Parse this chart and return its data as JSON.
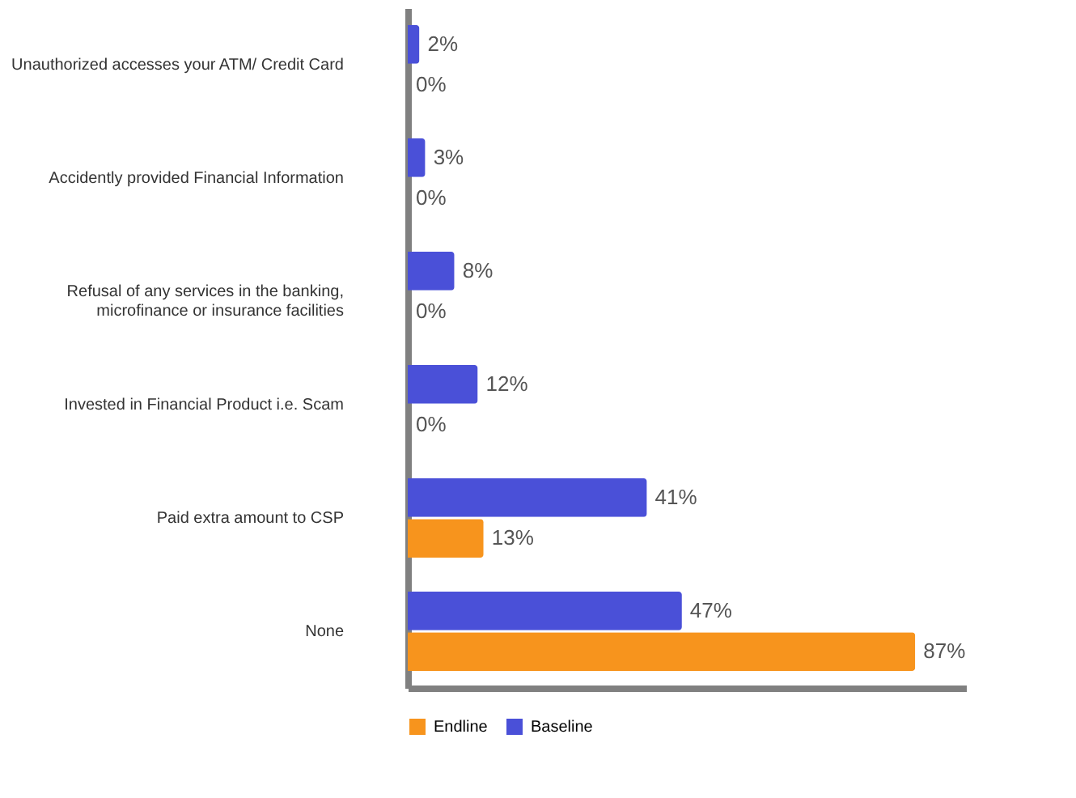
{
  "chart_data": {
    "type": "bar",
    "orientation": "horizontal",
    "categories": [
      "Unauthorized accesses your ATM/ Credit Card",
      "Accidently provided Financial Information",
      "Refusal of any services in the banking,\nmicrofinance or insurance facilities",
      "Invested in Financial Product i.e. Scam",
      "Paid extra amount to CSP",
      "None"
    ],
    "series": [
      {
        "name": "Baseline",
        "color": "#4a50d8",
        "values": [
          2,
          3,
          8,
          12,
          41,
          47
        ],
        "value_labels": [
          "2%",
          "3%",
          "8%",
          "12%",
          "41%",
          "47%"
        ]
      },
      {
        "name": "Endline",
        "color": "#f7941d",
        "values": [
          0,
          0,
          0,
          0,
          13,
          87
        ],
        "value_labels": [
          "0%",
          "0%",
          "0%",
          "0%",
          "13%",
          "87%"
        ]
      }
    ],
    "legend": "bottom",
    "grid": false
  }
}
